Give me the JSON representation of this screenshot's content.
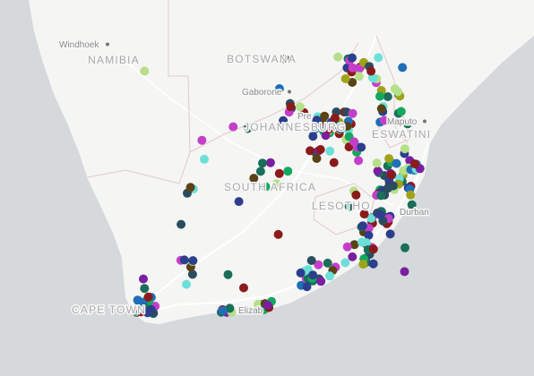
{
  "map": {
    "base_colors": {
      "water": "#d5d9dc",
      "land": "#f5f5f4",
      "border": "#e2c9c9",
      "road": "#ffffff"
    },
    "country_labels": [
      "NAMIBIA",
      "BOTSWANA",
      "JOHANNESBURG",
      "ESWATINI",
      "SOUTH AFRICA",
      "LESOTHO",
      "CAPE TOWN"
    ],
    "city_labels": [
      "Windhoek",
      "Gaborone",
      "Pre",
      "Maputo",
      "Durban",
      "Elizab"
    ],
    "point_palette": [
      "#2b4c5e",
      "#14a85e",
      "#1f6fb8",
      "#8b1a1a",
      "#b5e089",
      "#7a1fa0",
      "#5a4216",
      "#2c3e8c",
      "#9fa31a",
      "#6ce0d8",
      "#c43fc9",
      "#1a6e5a"
    ],
    "point_count": 268
  }
}
